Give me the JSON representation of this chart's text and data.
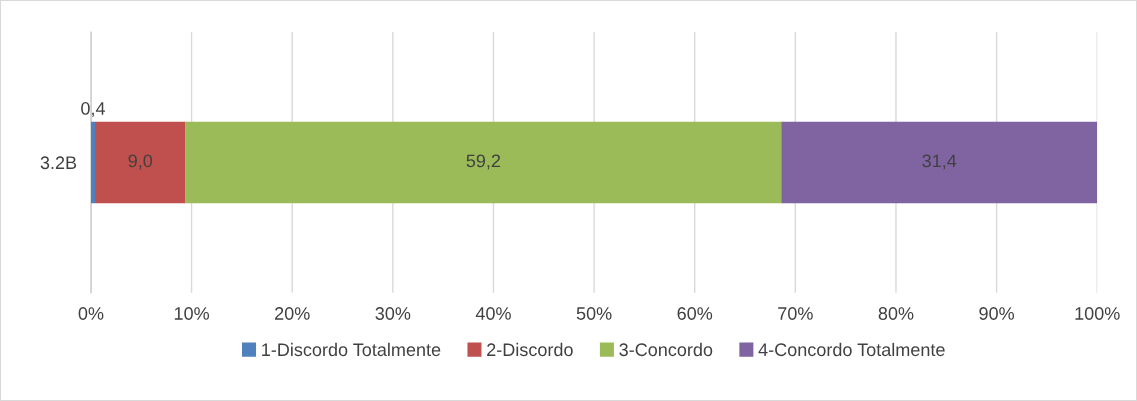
{
  "chart_data": {
    "type": "bar",
    "orientation": "horizontal",
    "stacked": true,
    "categories": [
      "3.2B"
    ],
    "series": [
      {
        "name": "1-Discordo Totalmente",
        "color": "#4f81bd",
        "values": [
          0.4
        ],
        "value_labels": [
          "0,4"
        ]
      },
      {
        "name": "2-Discordo",
        "color": "#c0504d",
        "values": [
          9.0
        ],
        "value_labels": [
          "9,0"
        ]
      },
      {
        "name": "3-Concordo",
        "color": "#9bbb59",
        "values": [
          59.2
        ],
        "value_labels": [
          "59,2"
        ]
      },
      {
        "name": "4-Concordo Totalmente",
        "color": "#8064a2",
        "values": [
          31.4
        ],
        "value_labels": [
          "31,4"
        ]
      }
    ],
    "xlim": [
      0,
      100
    ],
    "xticks": [
      {
        "value": 0,
        "label": "0%"
      },
      {
        "value": 10,
        "label": "10%"
      },
      {
        "value": 20,
        "label": "20%"
      },
      {
        "value": 30,
        "label": "30%"
      },
      {
        "value": 40,
        "label": "40%"
      },
      {
        "value": 50,
        "label": "50%"
      },
      {
        "value": 60,
        "label": "60%"
      },
      {
        "value": 70,
        "label": "70%"
      },
      {
        "value": 80,
        "label": "80%"
      },
      {
        "value": 90,
        "label": "90%"
      },
      {
        "value": 100,
        "label": "100%"
      }
    ],
    "grid": "x",
    "legend": "bottom"
  }
}
